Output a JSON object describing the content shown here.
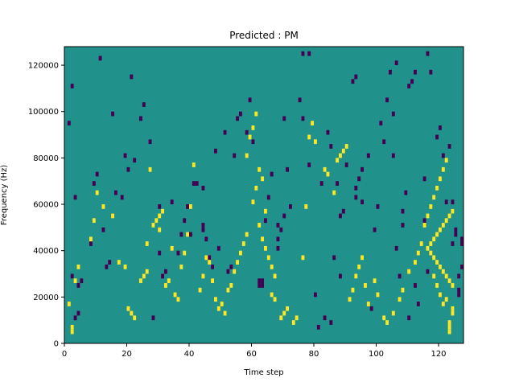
{
  "chart_data": {
    "type": "heatmap",
    "title": "Predicted : PM",
    "xlabel": "Time step",
    "ylabel": "Frequency (Hz)",
    "xlim": [
      0,
      128
    ],
    "ylim": [
      0,
      128000
    ],
    "x_ticks": [
      0,
      20,
      40,
      60,
      80,
      100,
      120
    ],
    "y_ticks": [
      0,
      20000,
      40000,
      60000,
      80000,
      100000,
      120000
    ],
    "x_tick_labels": [
      "0",
      "20",
      "40",
      "60",
      "80",
      "100",
      "120"
    ],
    "y_tick_labels": [
      "0",
      "20000",
      "40000",
      "60000",
      "80000",
      "100000",
      "120000"
    ],
    "colormap": "viridis",
    "value_levels": [
      -1,
      0,
      1
    ],
    "colors": {
      "background": "#21918c",
      "low": "#440154",
      "high": "#fde725"
    },
    "grid": false,
    "n_freq_bins": 64,
    "freq_bin_width_hz": 2000,
    "cells_low": [
      [
        2,
        14
      ],
      [
        4,
        12
      ],
      [
        4,
        6
      ],
      [
        11,
        61
      ],
      [
        13,
        16
      ],
      [
        8,
        21
      ],
      [
        14,
        17
      ],
      [
        3,
        31
      ],
      [
        21,
        57
      ],
      [
        30,
        19
      ],
      [
        32,
        15
      ],
      [
        42,
        34
      ],
      [
        44,
        33
      ],
      [
        48,
        41
      ],
      [
        51,
        45
      ],
      [
        55,
        48
      ],
      [
        56,
        49
      ],
      [
        62,
        12
      ],
      [
        62,
        13
      ],
      [
        63,
        12
      ],
      [
        63,
        13
      ],
      [
        60,
        43
      ],
      [
        68,
        25
      ],
      [
        70,
        48
      ],
      [
        72,
        29
      ],
      [
        75,
        52
      ],
      [
        76,
        62
      ],
      [
        78,
        62
      ],
      [
        80,
        10
      ],
      [
        81,
        3
      ],
      [
        83,
        5
      ],
      [
        85,
        4
      ],
      [
        88,
        14
      ],
      [
        87,
        34
      ],
      [
        90,
        38
      ],
      [
        93,
        31
      ],
      [
        95,
        30
      ],
      [
        97,
        40
      ],
      [
        101,
        47
      ],
      [
        102,
        43
      ],
      [
        104,
        58
      ],
      [
        106,
        60
      ],
      [
        108,
        28
      ],
      [
        108,
        25
      ],
      [
        110,
        5
      ],
      [
        112,
        12
      ],
      [
        116,
        62
      ],
      [
        119,
        44
      ],
      [
        120,
        46
      ],
      [
        122,
        30
      ],
      [
        124,
        21
      ],
      [
        124,
        30
      ],
      [
        124,
        28
      ],
      [
        125,
        23
      ],
      [
        125,
        24
      ],
      [
        126,
        10
      ],
      [
        126,
        11
      ],
      [
        127,
        21
      ],
      [
        127,
        22
      ],
      [
        116,
        15
      ],
      [
        105,
        40
      ],
      [
        113,
        8
      ],
      [
        115,
        26
      ],
      [
        109,
        32
      ],
      [
        107,
        14
      ],
      [
        106,
        20
      ],
      [
        98,
        7
      ],
      [
        92,
        56
      ],
      [
        93,
        57
      ],
      [
        88,
        27
      ],
      [
        89,
        28
      ],
      [
        82,
        34
      ],
      [
        85,
        42
      ],
      [
        86,
        18
      ],
      [
        84,
        45
      ],
      [
        76,
        48
      ],
      [
        78,
        38
      ],
      [
        71,
        37
      ],
      [
        64,
        26
      ],
      [
        65,
        31
      ],
      [
        66,
        36
      ],
      [
        58,
        45
      ],
      [
        59,
        52
      ],
      [
        52,
        15
      ],
      [
        53,
        16
      ],
      [
        49,
        20
      ],
      [
        54,
        40
      ],
      [
        47,
        16
      ],
      [
        46,
        18
      ],
      [
        44,
        25
      ],
      [
        44,
        24
      ],
      [
        45,
        22
      ],
      [
        40,
        23
      ],
      [
        41,
        34
      ],
      [
        39,
        29
      ],
      [
        38,
        26
      ],
      [
        37,
        23
      ],
      [
        36,
        19
      ],
      [
        34,
        30
      ],
      [
        31,
        14
      ],
      [
        30,
        29
      ],
      [
        28,
        5
      ],
      [
        27,
        43
      ],
      [
        24,
        48
      ],
      [
        25,
        51
      ],
      [
        22,
        39
      ],
      [
        20,
        37
      ],
      [
        19,
        40
      ],
      [
        18,
        31
      ],
      [
        16,
        32
      ],
      [
        15,
        49
      ],
      [
        12,
        24
      ],
      [
        9,
        34
      ],
      [
        10,
        36
      ],
      [
        5,
        13
      ],
      [
        3,
        5
      ],
      [
        2,
        55
      ],
      [
        1,
        47
      ],
      [
        93,
        33
      ],
      [
        94,
        35
      ],
      [
        95,
        37
      ],
      [
        99,
        24
      ],
      [
        100,
        29
      ],
      [
        103,
        52
      ],
      [
        105,
        49
      ],
      [
        110,
        55
      ],
      [
        111,
        56
      ],
      [
        112,
        58
      ],
      [
        117,
        58
      ],
      [
        115,
        35
      ],
      [
        121,
        40
      ],
      [
        123,
        42
      ],
      [
        126,
        14
      ],
      [
        127,
        16
      ],
      [
        68,
        20
      ],
      [
        68,
        22
      ],
      [
        69,
        24
      ],
      [
        70,
        27
      ]
    ],
    "cells_high": [
      [
        1,
        8
      ],
      [
        2,
        3
      ],
      [
        2,
        2
      ],
      [
        3,
        13
      ],
      [
        4,
        16
      ],
      [
        8,
        22
      ],
      [
        10,
        32
      ],
      [
        9,
        26
      ],
      [
        12,
        29
      ],
      [
        15,
        27
      ],
      [
        17,
        17
      ],
      [
        19,
        16
      ],
      [
        20,
        7
      ],
      [
        21,
        6
      ],
      [
        22,
        5
      ],
      [
        26,
        21
      ],
      [
        27,
        37
      ],
      [
        30,
        24
      ],
      [
        32,
        12
      ],
      [
        33,
        13
      ],
      [
        34,
        20
      ],
      [
        35,
        10
      ],
      [
        36,
        9
      ],
      [
        37,
        16
      ],
      [
        38,
        19
      ],
      [
        39,
        23
      ],
      [
        40,
        29
      ],
      [
        41,
        38
      ],
      [
        43,
        11
      ],
      [
        44,
        14
      ],
      [
        45,
        18
      ],
      [
        46,
        17
      ],
      [
        47,
        13
      ],
      [
        48,
        9
      ],
      [
        49,
        7
      ],
      [
        50,
        8
      ],
      [
        51,
        6
      ],
      [
        52,
        11
      ],
      [
        53,
        12
      ],
      [
        54,
        15
      ],
      [
        55,
        17
      ],
      [
        56,
        19
      ],
      [
        57,
        21
      ],
      [
        58,
        23
      ],
      [
        60,
        30
      ],
      [
        61,
        33
      ],
      [
        62,
        37
      ],
      [
        63,
        35
      ],
      [
        64,
        28
      ],
      [
        66,
        10
      ],
      [
        67,
        9
      ],
      [
        69,
        5
      ],
      [
        70,
        6
      ],
      [
        71,
        7
      ],
      [
        73,
        4
      ],
      [
        74,
        5
      ],
      [
        76,
        18
      ],
      [
        77,
        29
      ],
      [
        78,
        44
      ],
      [
        79,
        47
      ],
      [
        80,
        43
      ],
      [
        83,
        37
      ],
      [
        84,
        36
      ],
      [
        86,
        32
      ],
      [
        87,
        39
      ],
      [
        88,
        40
      ],
      [
        89,
        41
      ],
      [
        90,
        42
      ],
      [
        91,
        9
      ],
      [
        92,
        11
      ],
      [
        93,
        14
      ],
      [
        94,
        16
      ],
      [
        95,
        18
      ],
      [
        96,
        12
      ],
      [
        97,
        8
      ],
      [
        99,
        13
      ],
      [
        100,
        10
      ],
      [
        102,
        5
      ],
      [
        103,
        4
      ],
      [
        105,
        6
      ],
      [
        107,
        9
      ],
      [
        108,
        11
      ],
      [
        110,
        15
      ],
      [
        112,
        17
      ],
      [
        113,
        19
      ],
      [
        114,
        21
      ],
      [
        115,
        25
      ],
      [
        116,
        27
      ],
      [
        117,
        29
      ],
      [
        118,
        31
      ],
      [
        119,
        33
      ],
      [
        120,
        35
      ],
      [
        121,
        37
      ],
      [
        122,
        39
      ],
      [
        123,
        2
      ],
      [
        123,
        3
      ],
      [
        123,
        4
      ],
      [
        124,
        6
      ],
      [
        124,
        7
      ],
      [
        24,
        13
      ],
      [
        25,
        14
      ],
      [
        26,
        15
      ],
      [
        28,
        25
      ],
      [
        29,
        26
      ],
      [
        30,
        27
      ],
      [
        31,
        28
      ],
      [
        116,
        20
      ],
      [
        117,
        19
      ],
      [
        118,
        18
      ],
      [
        119,
        17
      ],
      [
        120,
        16
      ],
      [
        121,
        15
      ],
      [
        122,
        14
      ],
      [
        123,
        13
      ],
      [
        124,
        12
      ],
      [
        117,
        21
      ],
      [
        118,
        22
      ],
      [
        119,
        23
      ],
      [
        120,
        24
      ],
      [
        121,
        25
      ],
      [
        122,
        26
      ],
      [
        123,
        27
      ],
      [
        124,
        28
      ],
      [
        118,
        14
      ],
      [
        119,
        12
      ],
      [
        120,
        10
      ],
      [
        121,
        8
      ],
      [
        122,
        9
      ],
      [
        58,
        40
      ],
      [
        59,
        44
      ],
      [
        60,
        46
      ],
      [
        61,
        49
      ],
      [
        62,
        25
      ],
      [
        63,
        22
      ],
      [
        64,
        20
      ],
      [
        65,
        18
      ],
      [
        66,
        16
      ],
      [
        67,
        14
      ]
    ]
  }
}
